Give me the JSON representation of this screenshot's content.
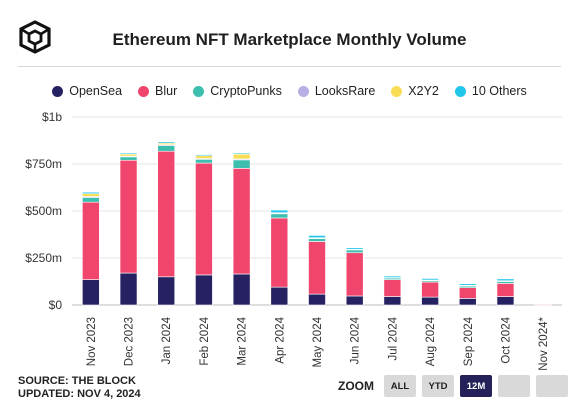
{
  "header": {
    "title": "Ethereum NFT Marketplace Monthly Volume",
    "logo_icon": "the-block-cube-logo"
  },
  "footer": {
    "source": "SOURCE: THE BLOCK",
    "updated": "UPDATED: NOV 4, 2024"
  },
  "zoom": {
    "label": "ZOOM",
    "buttons": [
      "ALL",
      "YTD",
      "12M",
      "",
      ""
    ],
    "active": "12M"
  },
  "colors": {
    "OpenSea": "#262262",
    "Blur": "#f0466d",
    "CryptoPunks": "#3cbfae",
    "LooksRare": "#b9aee3",
    "X2Y2": "#f8dd55",
    "10 Others": "#22c6ea"
  },
  "chart_data": {
    "type": "bar",
    "stacked": true,
    "categories": [
      "Nov 2023",
      "Dec 2023",
      "Jan 2024",
      "Feb 2024",
      "Mar 2024",
      "Apr 2024",
      "May 2024",
      "Jun 2024",
      "Jul 2024",
      "Aug 2024",
      "Sep 2024",
      "Oct 2024",
      "Nov 2024*"
    ],
    "series": [
      {
        "name": "OpenSea",
        "values": [
          135,
          170,
          150,
          160,
          165,
          95,
          58,
          48,
          45,
          42,
          35,
          45,
          3
        ]
      },
      {
        "name": "Blur",
        "values": [
          412,
          600,
          668,
          595,
          562,
          368,
          280,
          230,
          90,
          80,
          57,
          70,
          4
        ]
      },
      {
        "name": "CryptoPunks",
        "values": [
          25,
          18,
          30,
          20,
          45,
          22,
          15,
          15,
          8,
          7,
          8,
          10,
          0
        ]
      },
      {
        "name": "LooksRare",
        "values": [
          5,
          4,
          5,
          4,
          5,
          3,
          3,
          2,
          2,
          2,
          2,
          2,
          0
        ]
      },
      {
        "name": "X2Y2",
        "values": [
          15,
          10,
          8,
          15,
          25,
          3,
          2,
          1,
          1,
          2,
          3,
          2,
          0
        ]
      },
      {
        "name": "10 Others",
        "values": [
          8,
          6,
          7,
          6,
          6,
          14,
          12,
          8,
          8,
          8,
          8,
          10,
          0
        ]
      }
    ],
    "ylim": [
      0,
      1000
    ],
    "yticks": [
      "$0",
      "$250m",
      "$500m",
      "$750m",
      "$1b"
    ],
    "ytick_values": [
      0,
      250,
      500,
      750,
      1000
    ],
    "grid": true,
    "legend_position": "top"
  }
}
